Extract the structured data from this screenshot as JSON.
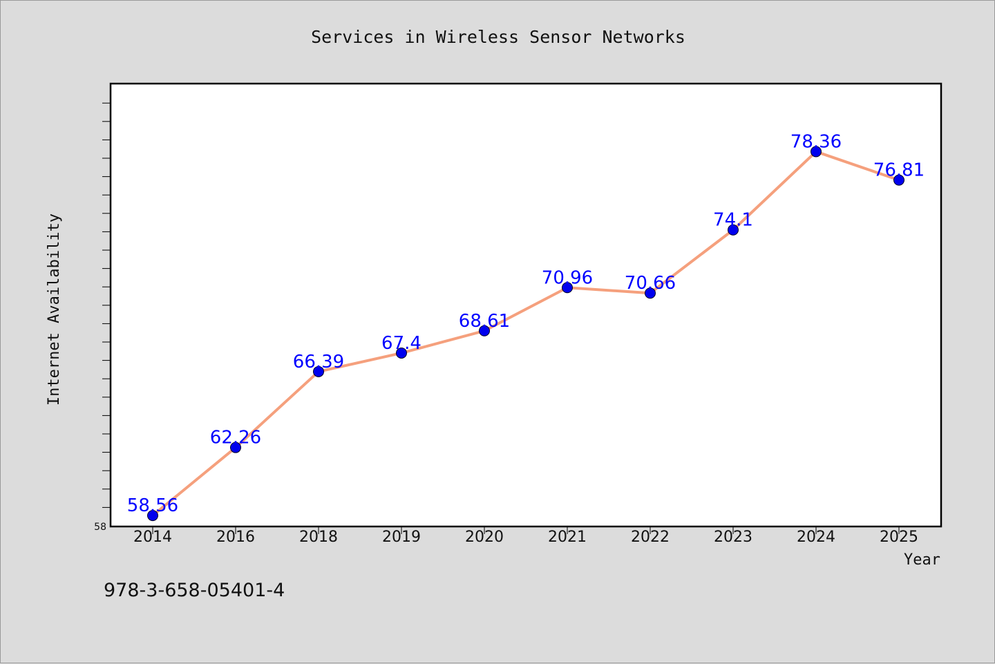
{
  "chart_data": {
    "type": "line",
    "title": "Services in Wireless Sensor Networks",
    "xlabel": "Year",
    "ylabel": "Internet Availability",
    "categories": [
      "2014",
      "2016",
      "2018",
      "2019",
      "2020",
      "2021",
      "2022",
      "2023",
      "2024",
      "2025"
    ],
    "series": [
      {
        "values": [
          58.56,
          62.26,
          66.39,
          67.4,
          68.61,
          70.96,
          70.66,
          74.1,
          78.36,
          76.81
        ],
        "labels": [
          "58.56",
          "62.26",
          "66.39",
          "67.4",
          "68.61",
          "70.96",
          "70.66",
          "74.1",
          "78.36",
          "76.81"
        ]
      }
    ],
    "ylim": [
      58,
      82
    ],
    "y_tick_labels": [
      "58"
    ],
    "grid": false,
    "legend": "none",
    "colors": {
      "line": "#f5a07d",
      "marker": "#0000ee",
      "data_label": "#0000ff",
      "plot_background": "#ffffff",
      "figure_background": "#dcdcdc"
    }
  },
  "footer": {
    "isbn": "978-3-658-05401-4"
  }
}
